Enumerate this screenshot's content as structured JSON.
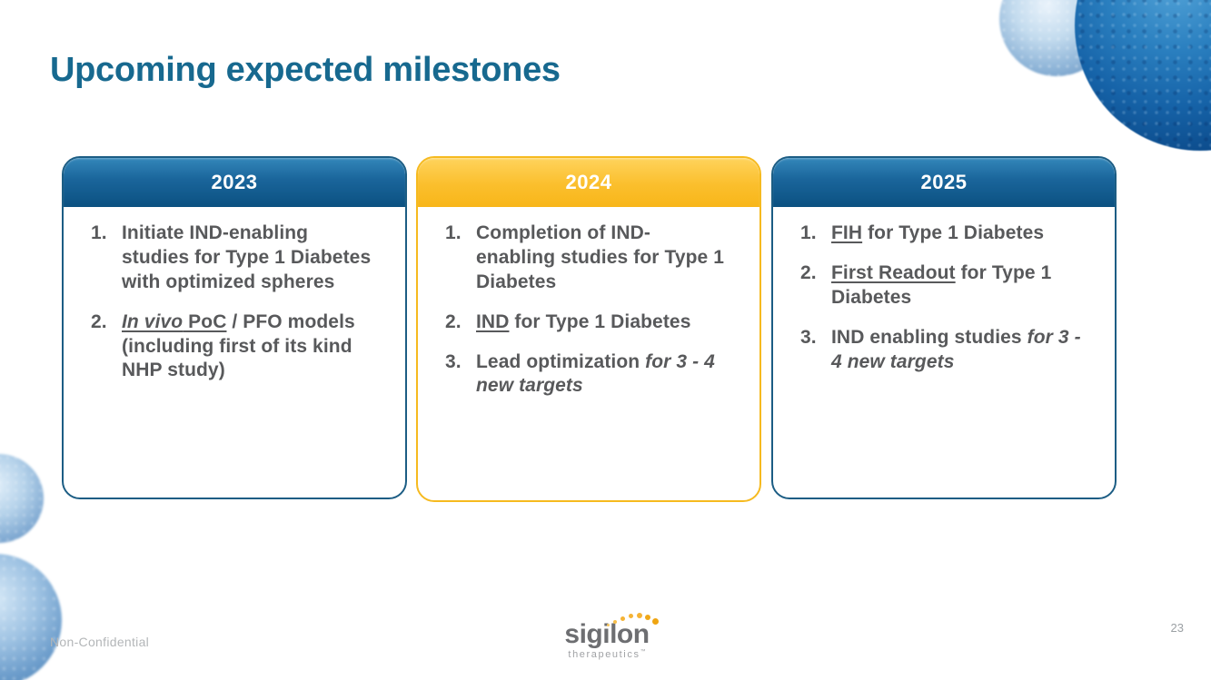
{
  "slide": {
    "title": "Upcoming expected milestones",
    "cards": [
      {
        "year": "2023",
        "theme": "blue",
        "items": [
          {
            "n": "1.",
            "segments": [
              {
                "t": "Initiate IND-enabling studies for Type 1 Diabetes with optimized spheres"
              }
            ]
          },
          {
            "n": "2.",
            "segments": [
              {
                "t": "In vivo",
                "s": "iu"
              },
              {
                "t": " PoC",
                "s": "u"
              },
              {
                "t": " / PFO models (including first of its kind NHP study)"
              }
            ]
          }
        ]
      },
      {
        "year": "2024",
        "theme": "gold",
        "items": [
          {
            "n": "1.",
            "segments": [
              {
                "t": "Completion of IND-enabling studies for Type 1 Diabetes"
              }
            ]
          },
          {
            "n": "2.",
            "segments": [
              {
                "t": "IND",
                "s": "u"
              },
              {
                "t": " for Type 1 Diabetes"
              }
            ]
          },
          {
            "n": "3.",
            "segments": [
              {
                "t": "Lead optimization "
              },
              {
                "t": "for 3 - 4 new targets",
                "s": "i"
              }
            ]
          }
        ]
      },
      {
        "year": "2025",
        "theme": "blue",
        "items": [
          {
            "n": "1.",
            "segments": [
              {
                "t": "FIH",
                "s": "u"
              },
              {
                "t": " for Type 1 Diabetes"
              }
            ]
          },
          {
            "n": "2.",
            "segments": [
              {
                "t": "First Readout",
                "s": "u"
              },
              {
                "t": " for Type 1 Diabetes"
              }
            ]
          },
          {
            "n": "3.",
            "segments": [
              {
                "t": "IND enabling studies "
              },
              {
                "t": "for 3 - 4 new targets",
                "s": "i"
              }
            ]
          }
        ]
      }
    ],
    "footer": {
      "classification": "Non-Confidential",
      "page_number": "23"
    },
    "logo": {
      "wordmark": "sigilon",
      "tagline": "therapeutics",
      "trademark": "™"
    },
    "colors": {
      "title": "#17698F",
      "blue_header_top": "#3488BB",
      "blue_header_bottom": "#0B5181",
      "blue_border": "#1C5D84",
      "gold_header_top": "#FFD45E",
      "gold_header_bottom": "#F8B619",
      "gold_border": "#F6BA1F",
      "body_text": "#58595B",
      "footer_text": "#B3B6B8",
      "logo_gray": "#6D6E71",
      "logo_gold": "#F5B335"
    }
  }
}
